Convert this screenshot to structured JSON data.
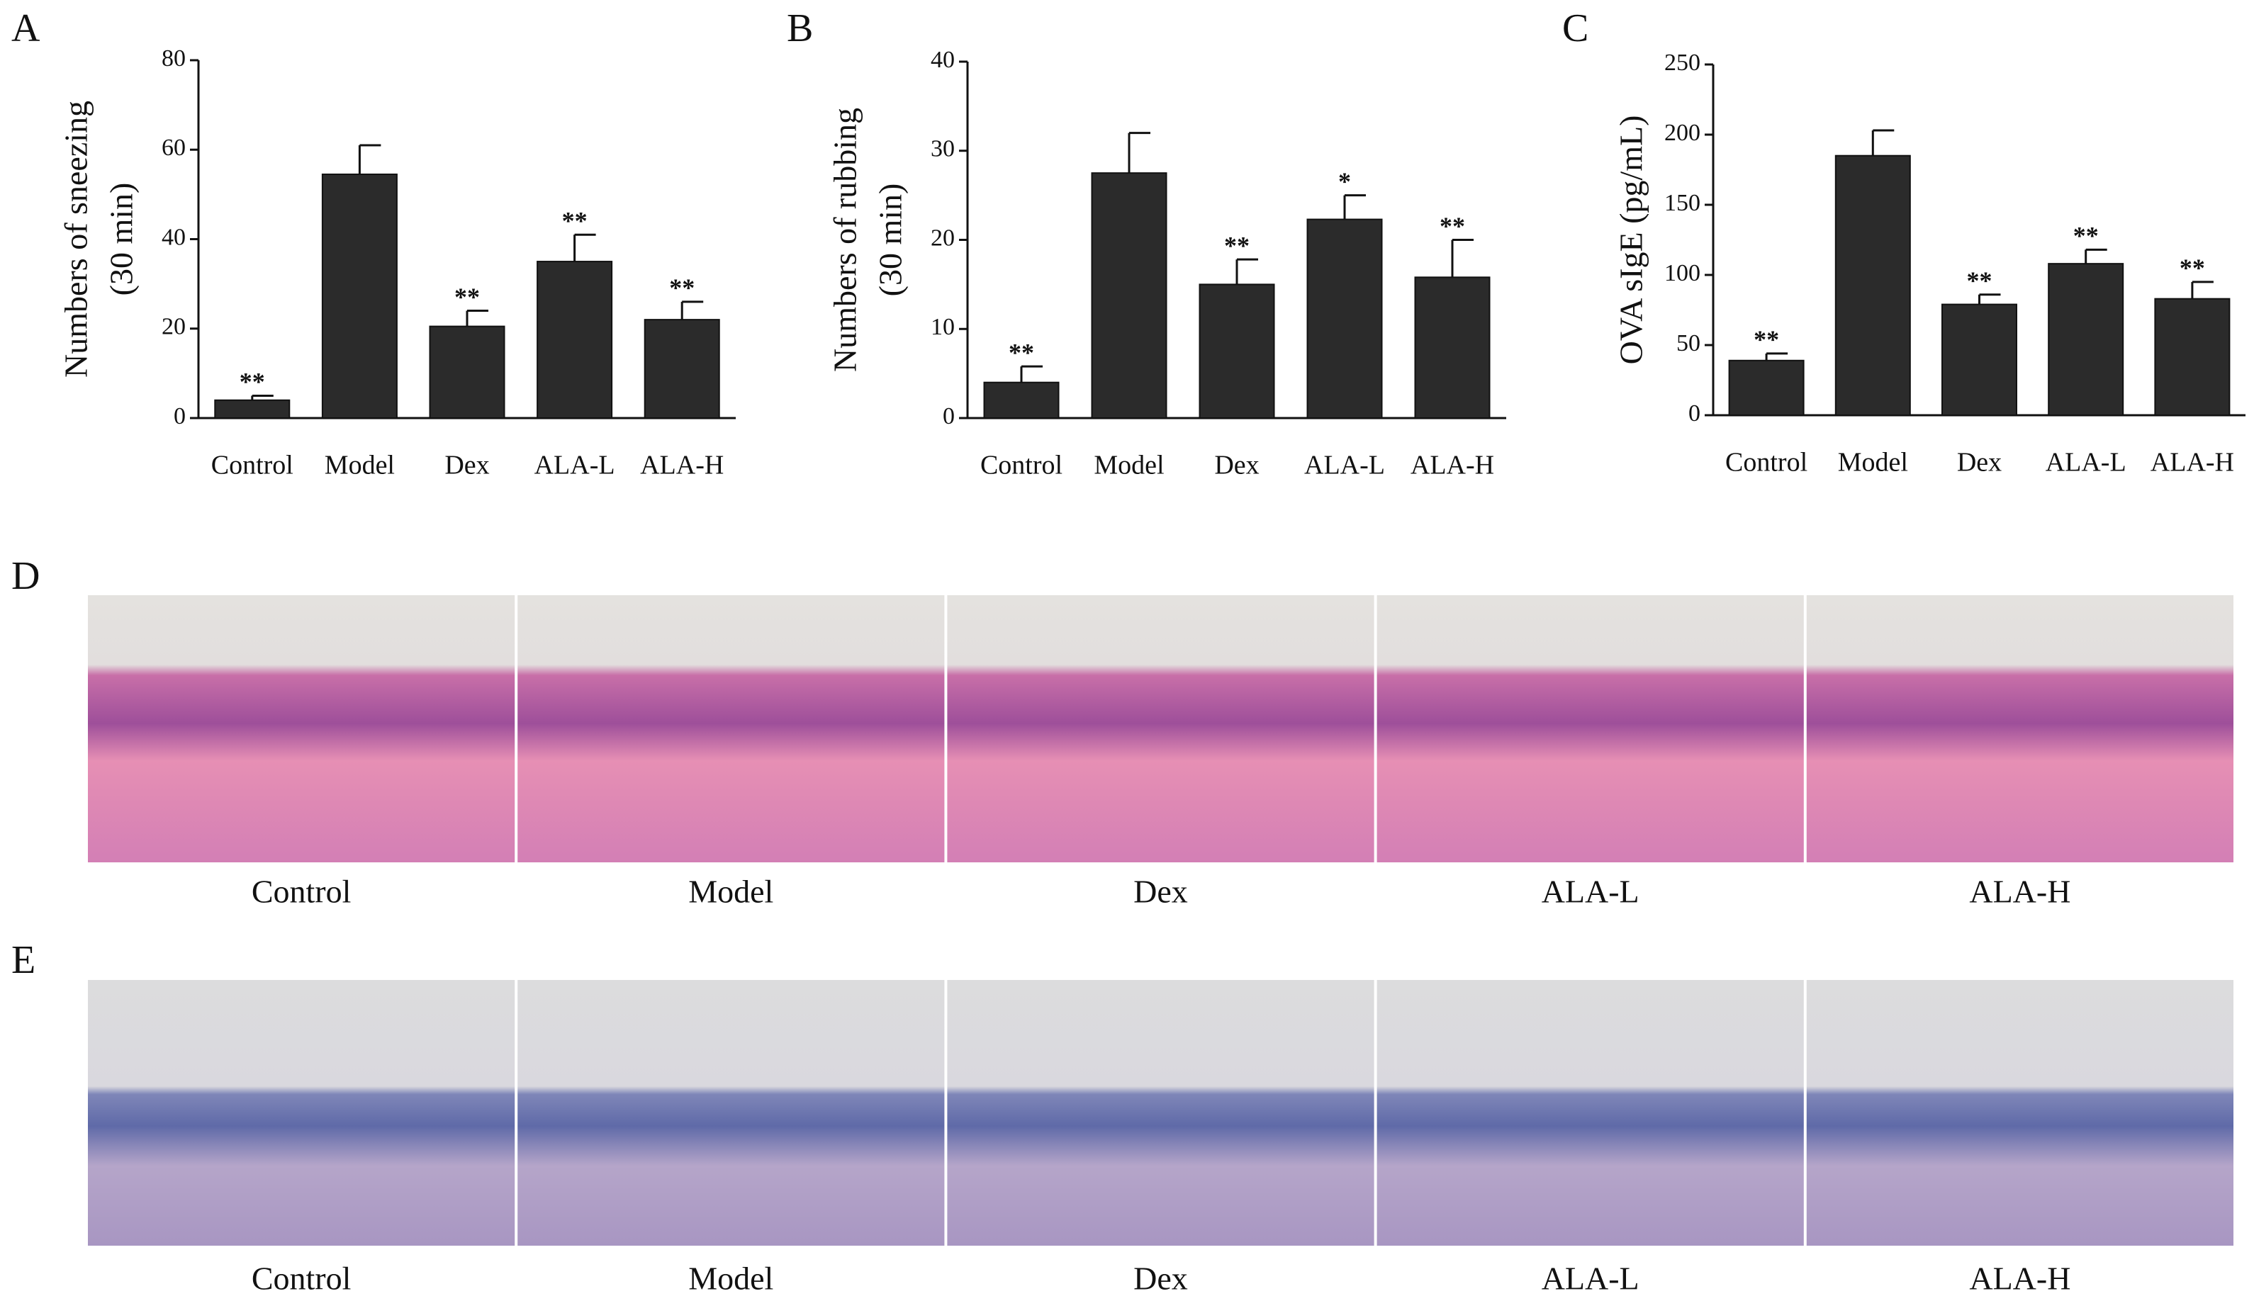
{
  "chart_data": [
    {
      "type": "bar",
      "panel": "A",
      "ylabel": [
        "Numbers of sneezing",
        "(30 min)"
      ],
      "categories": [
        "Control",
        "Model",
        "Dex",
        "ALA-L",
        "ALA-H"
      ],
      "values": [
        4,
        54.5,
        20.5,
        35,
        22
      ],
      "errors": [
        1,
        6.5,
        3.5,
        6,
        4
      ],
      "significance": [
        "**",
        null,
        "**",
        "**",
        "**"
      ],
      "color": "#2b2b2b",
      "ylim": [
        0,
        80
      ],
      "yticks": [
        0,
        20,
        40,
        60,
        80
      ]
    },
    {
      "type": "bar",
      "panel": "B",
      "ylabel": [
        "Numbers of rubbing",
        "(30 min)"
      ],
      "categories": [
        "Control",
        "Model",
        "Dex",
        "ALA-L",
        "ALA-H"
      ],
      "values": [
        4,
        27.5,
        15,
        22.3,
        15.8
      ],
      "errors": [
        1.8,
        4.5,
        2.8,
        2.7,
        4.2
      ],
      "significance": [
        "**",
        null,
        "**",
        "*",
        "**"
      ],
      "color": "#2b2b2b",
      "ylim": [
        0,
        40
      ],
      "yticks": [
        0,
        10,
        20,
        30,
        40
      ]
    },
    {
      "type": "bar",
      "panel": "C",
      "ylabel": [
        "OVA sIgE (pg/mL)"
      ],
      "categories": [
        "Control",
        "Model",
        "Dex",
        "ALA-L",
        "ALA-H"
      ],
      "values": [
        39,
        185,
        79,
        108,
        83
      ],
      "errors": [
        5,
        18,
        7,
        10,
        12
      ],
      "significance": [
        "**",
        null,
        "**",
        "**",
        "**"
      ],
      "color": "#2b2b2b",
      "ylim": [
        0,
        250
      ],
      "yticks": [
        0,
        50,
        100,
        150,
        200,
        250
      ]
    }
  ],
  "image_panels": [
    {
      "label": "D",
      "captions": [
        "Control",
        "Model",
        "Dex",
        "ALA-L",
        "ALA-H"
      ]
    },
    {
      "label": "E",
      "captions": [
        "Control",
        "Model",
        "Dex",
        "ALA-L",
        "ALA-H"
      ]
    }
  ]
}
